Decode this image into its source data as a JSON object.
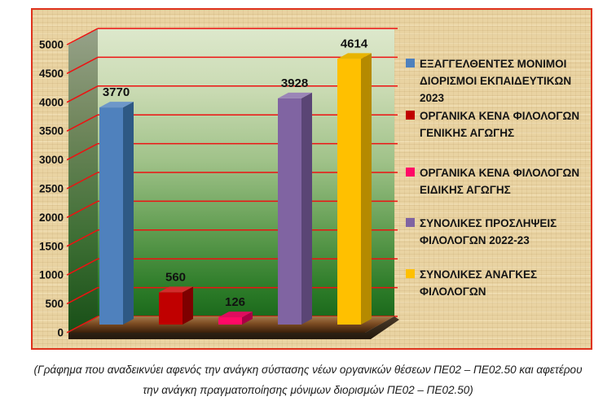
{
  "chart_data": {
    "type": "bar",
    "title": "",
    "xlabel": "",
    "ylabel": "",
    "ylim": [
      0,
      5000
    ],
    "ytick_step": 500,
    "yticks": [
      0,
      500,
      1000,
      1500,
      2000,
      2500,
      3000,
      3500,
      4000,
      4500,
      5000
    ],
    "grid": true,
    "legend_position": "right",
    "categories": [
      "ΕΞΑΓΓΕΛΘΕΝΤΕΣ ΜΟΝΙΜΟΙ ΔΙΟΡΙΣΜΟΙ ΕΚΠΑΙΔΕΥΤΙΚΩΝ 2023",
      "ΟΡΓΑΝΙΚΑ ΚΕΝΑ ΦΙΛΟΛΟΓΩΝ ΓΕΝΙΚΗΣ ΑΓΩΓΗΣ",
      "ΟΡΓΑΝΙΚΑ ΚΕΝΑ ΦΙΛΟΛΟΓΩΝ ΕΙΔΙΚΗΣ ΑΓΩΓΗΣ",
      "ΣΥΝΟΛΙΚΕΣ ΠΡΟΣΛΗΨΕΙΣ ΦΙΛΟΛΟΓΩΝ 2022-23",
      "ΣΥΝΟΛΙΚΕΣ ΑΝΑΓΚΕΣ ΦΙΛΟΛΟΓΩΝ"
    ],
    "values": [
      3770,
      560,
      126,
      3928,
      4614
    ],
    "value_labels": [
      "3770",
      "560",
      "126",
      "3928",
      "4614"
    ],
    "series": [
      {
        "name": "ΕΞΑΓΓΕΛΘΕΝΤΕΣ ΜΟΝΙΜΟΙ ΔΙΟΡΙΣΜΟΙ ΕΚΠΑΙΔΕΥΤΙΚΩΝ 2023",
        "legend_lines": "ΕΞΑΓΓΕΛΘΕΝΤΕΣ ΜΟΝΙΜΟΙ\nΔΙΟΡΙΣΜΟΙ ΕΚΠΑΙΔΕΥΤΙΚΩΝ\n2023",
        "value": 3770,
        "color_front": "#4f81bd",
        "color_side": "#2e5984",
        "color_top": "#6d97c9"
      },
      {
        "name": "ΟΡΓΑΝΙΚΑ ΚΕΝΑ ΦΙΛΟΛΟΓΩΝ ΓΕΝΙΚΗΣ ΑΓΩΓΗΣ",
        "legend_lines": "ΟΡΓΑΝΙΚΑ ΚΕΝΑ ΦΙΛΟΛΟΓΩΝ\nΓΕΝΙΚΗΣ ΑΓΩΓΗΣ",
        "value": 560,
        "color_front": "#c00000",
        "color_side": "#7e0000",
        "color_top": "#d22c2c"
      },
      {
        "name": "ΟΡΓΑΝΙΚΑ ΚΕΝΑ ΦΙΛΟΛΟΓΩΝ ΕΙΔΙΚΗΣ ΑΓΩΓΗΣ",
        "legend_lines": "ΟΡΓΑΝΙΚΑ ΚΕΝΑ ΦΙΛΟΛΟΓΩΝ\nΕΙΔΙΚΗΣ ΑΓΩΓΗΣ",
        "value": 126,
        "color_front": "#ff0a66",
        "color_side": "#a80044",
        "color_top": "#df0d5e"
      },
      {
        "name": "ΣΥΝΟΛΙΚΕΣ ΠΡΟΣΛΗΨΕΙΣ ΦΙΛΟΛΟΓΩΝ 2022-23",
        "legend_lines": "ΣΥΝΟΛΙΚΕΣ ΠΡΟΣΛΗΨΕΙΣ\nΦΙΛΟΛΟΓΩΝ 2022-23",
        "value": 3928,
        "color_front": "#8064a2",
        "color_side": "#5a4575",
        "color_top": "#9b85b7"
      },
      {
        "name": "ΣΥΝΟΛΙΚΕΣ ΑΝΑΓΚΕΣ ΦΙΛΟΛΟΓΩΝ",
        "legend_lines": "ΣΥΝΟΛΙΚΕΣ ΑΝΑΓΚΕΣ\nΦΙΛΟΛΟΓΩΝ",
        "value": 4614,
        "color_front": "#ffc000",
        "color_side": "#b58a00",
        "color_top": "#e8b400"
      }
    ],
    "style": {
      "gridline_color": "#ee1111",
      "axis_label_color": "#111111",
      "value_label_color": "#111111",
      "frame_border_color": "#df331d",
      "frame_background": "#e9d3a2"
    }
  },
  "caption": {
    "line1": "(Γράφημα που αναδεικνύει αφενός την ανάγκη σύστασης νέων οργανικών θέσεων ΠΕ02 –  ΠΕ02.50 και αφετέρου",
    "line2": "την ανάγκη πραγματοποίησης μόνιμων διορισμών ΠΕ02 – ΠΕ02.50)"
  }
}
